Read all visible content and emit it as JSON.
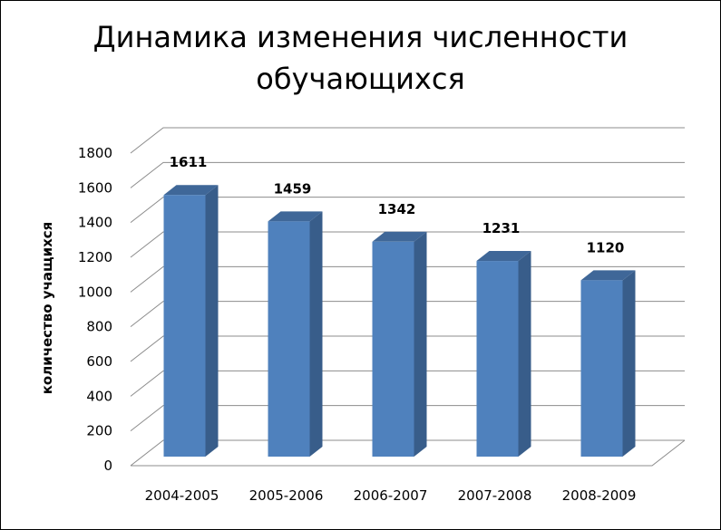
{
  "chart_data": {
    "type": "bar",
    "title_lines": [
      "Динамика изменения численности",
      "обучающихся"
    ],
    "ylabel": "количество  учащихся",
    "xlabel": "",
    "categories": [
      "2004-2005",
      "2005-2006",
      "2006-2007",
      "2007-2008",
      "2008-2009"
    ],
    "series": [
      {
        "values": [
          1611,
          1459,
          1342,
          1231,
          1120
        ],
        "labels": [
          "1611",
          "1459",
          "1342",
          "1231",
          "1120"
        ]
      }
    ],
    "ylim": [
      0,
      1800
    ],
    "yticks": [
      "0",
      "200",
      "400",
      "600",
      "800",
      "1000",
      "1200",
      "1400",
      "1600",
      "1800"
    ],
    "grid": true,
    "style": "3d-column",
    "legend": "none",
    "colors": {
      "bar_front": "#4F81BD",
      "bar_side": "#385D8A",
      "bar_top": "#3F6798",
      "grid": "#8C8C8C"
    }
  }
}
